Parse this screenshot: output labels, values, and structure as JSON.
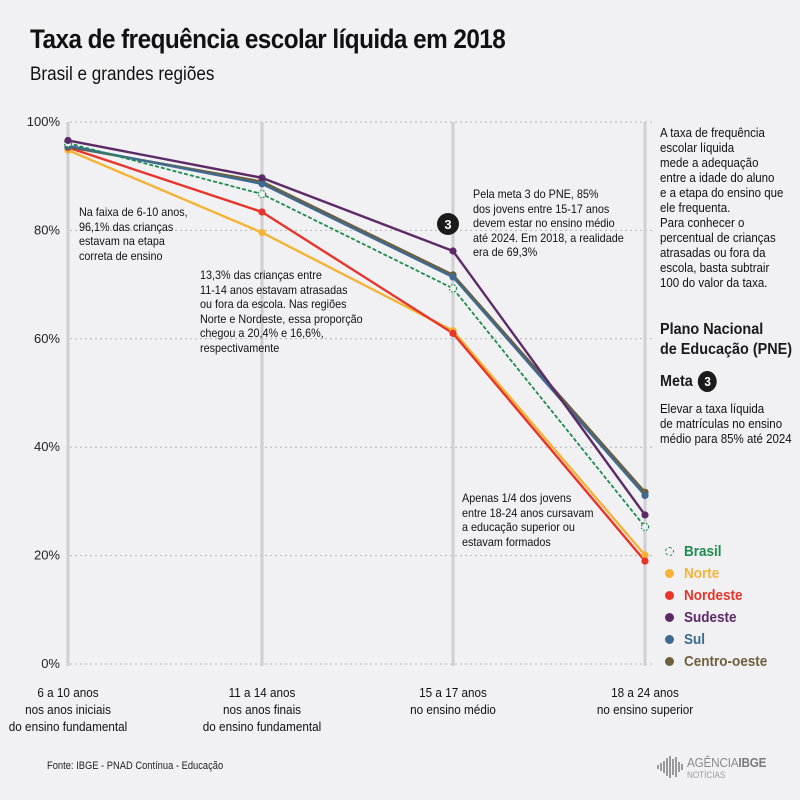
{
  "title": "Taxa de frequência escolar líquida em 2018",
  "subtitle": "Brasil e grandes regiões",
  "chart_data": {
    "type": "line",
    "title": "Taxa de frequência escolar líquida em 2018",
    "subtitle": "Brasil e grandes regiões",
    "xlabel": "",
    "ylabel": "",
    "ylim": [
      0,
      100
    ],
    "yticks": [
      0,
      20,
      40,
      60,
      80,
      100
    ],
    "ytick_labels": [
      "0%",
      "20%",
      "40%",
      "60%",
      "80%",
      "100%"
    ],
    "grid": "horizontal dotted",
    "categories": [
      [
        "6 a 10 anos",
        "nos anos iniciais",
        "do ensino fundamental"
      ],
      [
        "11 a 14 anos",
        "nos anos finais",
        "do ensino fundamental"
      ],
      [
        "15 a 17 anos",
        "no ensino médio"
      ],
      [
        "18 a 24 anos",
        "no ensino superior"
      ]
    ],
    "series": [
      {
        "name": "Norte",
        "color": "#f5b335",
        "style": "solid",
        "values": [
          94.8,
          79.6,
          61.5,
          20.1
        ]
      },
      {
        "name": "Nordeste",
        "color": "#e8342a",
        "style": "solid",
        "values": [
          95.3,
          83.4,
          61.0,
          19.0
        ]
      },
      {
        "name": "Centro-oeste",
        "color": "#6e5f3c",
        "style": "solid",
        "values": [
          95.4,
          89.0,
          71.8,
          31.7
        ]
      },
      {
        "name": "Sul",
        "color": "#3e6a91",
        "style": "solid",
        "values": [
          95.6,
          88.6,
          71.4,
          31.1
        ]
      },
      {
        "name": "Brasil",
        "color": "#1e8c4e",
        "style": "dashed",
        "values": [
          96.1,
          86.7,
          69.3,
          25.3
        ]
      },
      {
        "name": "Sudeste",
        "color": "#5b2a67",
        "style": "solid",
        "values": [
          96.6,
          89.7,
          76.2,
          27.5
        ]
      }
    ],
    "legend_position": "right",
    "legend": [
      "Brasil",
      "Norte",
      "Nordeste",
      "Sudeste",
      "Sul",
      "Centro-oeste"
    ],
    "annotations": [
      {
        "text": [
          "Na faixa de 6-10 anos,",
          "96,1% das crianças",
          "estavam na etapa",
          "correta de ensino"
        ]
      },
      {
        "text": [
          "13,3% das crianças entre",
          "11-14 anos estavam atrasadas",
          "ou fora da escola. Nas regiões",
          "Norte e Nordeste, essa proporção",
          "chegou a 20,4% e 16,6%,",
          "respectivamente"
        ]
      },
      {
        "badge": "3",
        "text": [
          "Pela meta 3 do PNE, 85%",
          "dos jovens entre 15-17 anos",
          "devem estar no ensino médio",
          "até 2024. Em 2018, a realidade",
          "era de 69,3%"
        ]
      },
      {
        "text": [
          "Apenas 1/4 dos jovens",
          "entre 18-24 anos cursavam",
          "a educação superior ou",
          "estavam formados"
        ]
      }
    ]
  },
  "sidebar": {
    "intro": [
      "A taxa de frequência",
      "escolar líquida",
      "mede a adequação",
      "entre a idade do aluno",
      "e a etapa do ensino que",
      "ele frequenta.",
      "Para conhecer o",
      "percentual de crianças",
      "atrasadas ou fora da",
      "escola, basta subtrair",
      "100 do valor da taxa."
    ],
    "pne_title": [
      "Plano Nacional",
      "de Educação (PNE)"
    ],
    "meta_label": "Meta",
    "meta_number": "3",
    "meta_text": [
      "Elevar a taxa líquida",
      "de matrículas no ensino",
      "médio para 85% até 2024"
    ]
  },
  "legend_colors": {
    "Brasil": "#1e8c4e",
    "Norte": "#f5b335",
    "Nordeste": "#e8342a",
    "Sudeste": "#5b2a67",
    "Sul": "#3e6a91",
    "Centro-oeste": "#6e5f3c"
  },
  "source": "Fonte: IBGE - PNAD Contínua - Educação",
  "logo": {
    "line1_a": "AGÊNCIA",
    "line1_b": "IBGE",
    "line2": "NOTÍCIAS"
  }
}
